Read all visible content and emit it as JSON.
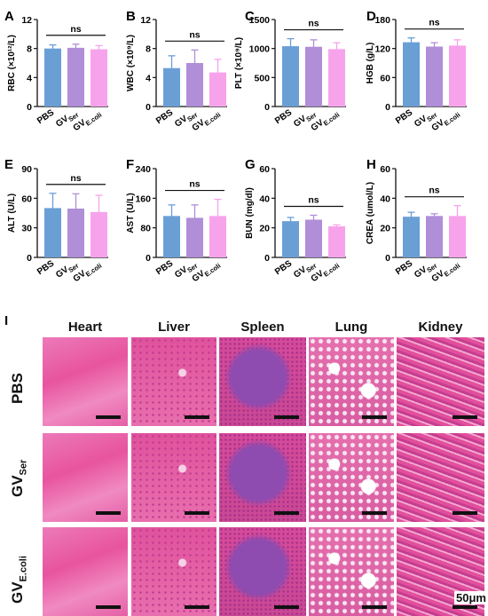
{
  "chart_data": [
    {
      "panel": "A",
      "type": "bar",
      "ylabel": "RBC (×10¹²/L)",
      "ylim": [
        0,
        12
      ],
      "yticks": [
        "0",
        "4",
        "8",
        "12"
      ],
      "categories": [
        "PBS",
        "GV",
        "GV"
      ],
      "category_subscripts": [
        "",
        "Ser",
        "E.coli"
      ],
      "values": [
        8.0,
        8.1,
        7.9
      ],
      "errors": [
        0.5,
        0.5,
        0.5
      ],
      "annotation": "ns"
    },
    {
      "panel": "B",
      "type": "bar",
      "ylabel": "WBC (×10⁹/L)",
      "ylim": [
        0,
        12
      ],
      "yticks": [
        "0",
        "4",
        "8",
        "12"
      ],
      "categories": [
        "PBS",
        "GV",
        "GV"
      ],
      "category_subscripts": [
        "",
        "Ser",
        "E.coli"
      ],
      "values": [
        5.3,
        6.0,
        4.7
      ],
      "errors": [
        1.7,
        1.8,
        1.8
      ],
      "annotation": "ns"
    },
    {
      "panel": "C",
      "type": "bar",
      "ylabel": "PLT (×10⁹/L)",
      "ylim": [
        0,
        1500
      ],
      "yticks": [
        "0",
        "500",
        "1000",
        "1500"
      ],
      "categories": [
        "PBS",
        "GV",
        "GV"
      ],
      "category_subscripts": [
        "",
        "Ser",
        "E.coli"
      ],
      "values": [
        1040,
        1030,
        990
      ],
      "errors": [
        130,
        120,
        110
      ],
      "annotation": "ns"
    },
    {
      "panel": "D",
      "type": "bar",
      "ylabel": "HGB (g/L)",
      "ylim": [
        0,
        180
      ],
      "yticks": [
        "0",
        "60",
        "120",
        "180"
      ],
      "categories": [
        "PBS",
        "GV",
        "GV"
      ],
      "category_subscripts": [
        "",
        "Ser",
        "E.coli"
      ],
      "values": [
        133,
        124,
        126
      ],
      "errors": [
        9,
        8,
        12
      ],
      "annotation": "ns"
    },
    {
      "panel": "E",
      "type": "bar",
      "ylabel": "ALT (U/L)",
      "ylim": [
        0,
        90
      ],
      "yticks": [
        "0",
        "30",
        "60",
        "90"
      ],
      "categories": [
        "PBS",
        "GV",
        "GV"
      ],
      "category_subscripts": [
        "",
        "Ser",
        "E.coli"
      ],
      "values": [
        50,
        49.5,
        46
      ],
      "errors": [
        15,
        15,
        17
      ],
      "annotation": "ns"
    },
    {
      "panel": "F",
      "type": "bar",
      "ylabel": "AST (U/L)",
      "ylim": [
        0,
        240
      ],
      "yticks": [
        "0",
        "80",
        "160",
        "240"
      ],
      "categories": [
        "PBS",
        "GV",
        "GV"
      ],
      "category_subscripts": [
        "",
        "Ser",
        "E.coli"
      ],
      "values": [
        112,
        107,
        112
      ],
      "errors": [
        30,
        35,
        45
      ],
      "annotation": "ns"
    },
    {
      "panel": "G",
      "type": "bar",
      "ylabel": "BUN (mg/dl)",
      "ylim": [
        0,
        60
      ],
      "yticks": [
        "0",
        "20",
        "40",
        "60"
      ],
      "categories": [
        "PBS",
        "GV",
        "GV"
      ],
      "category_subscripts": [
        "",
        "Ser",
        "E.coli"
      ],
      "values": [
        24.5,
        25.5,
        21
      ],
      "errors": [
        2.5,
        3,
        1
      ],
      "annotation": "ns"
    },
    {
      "panel": "H",
      "type": "bar",
      "ylabel": "CREA (umol/L)",
      "ylim": [
        0,
        60
      ],
      "yticks": [
        "0",
        "20",
        "40",
        "60"
      ],
      "categories": [
        "PBS",
        "GV",
        "GV"
      ],
      "category_subscripts": [
        "",
        "Ser",
        "E.coli"
      ],
      "values": [
        27.5,
        28,
        28
      ],
      "errors": [
        3,
        1.5,
        7
      ],
      "annotation": "ns"
    }
  ],
  "colors": {
    "bar1": "#6a9fd6",
    "bar2": "#b08ed8",
    "bar3": "#f7a3ec",
    "axis": "#111111",
    "he_base": "#e23d99",
    "he_light": "#f3a9d2",
    "he_dark": "#7a3f9e"
  },
  "histology": {
    "panel_letter": "I",
    "columns": [
      "Heart",
      "Liver",
      "Spleen",
      "Lung",
      "Kidney"
    ],
    "rows": [
      {
        "name": "PBS",
        "sub": ""
      },
      {
        "name": "GV",
        "sub": "Ser"
      },
      {
        "name": "GV",
        "sub": "E.coli"
      }
    ],
    "scale_label": "50μm"
  }
}
